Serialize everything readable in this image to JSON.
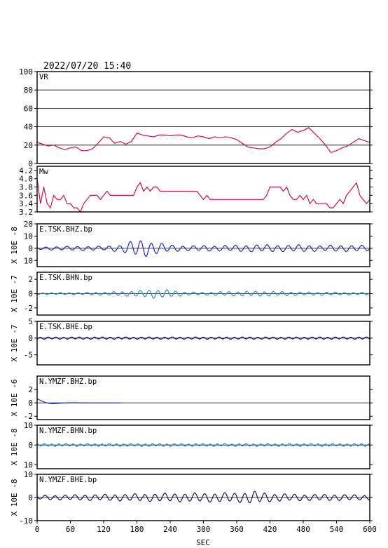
{
  "header": {
    "datetime": "2022/07/20  15:40"
  },
  "x_axis": {
    "label": "SEC",
    "ticks": [
      0,
      60,
      120,
      180,
      240,
      300,
      360,
      420,
      480,
      540,
      600
    ],
    "range": [
      0,
      600
    ]
  },
  "chart_data": [
    {
      "type": "line",
      "name": "VR",
      "panel_label": "VR",
      "ylabel": "",
      "ylim": [
        0,
        100
      ],
      "yticks": [
        0,
        20,
        40,
        60,
        80,
        100
      ],
      "grid_y": [
        20,
        40,
        60,
        80
      ],
      "color": "#cc1144",
      "x": [
        0,
        10,
        20,
        30,
        40,
        50,
        60,
        70,
        80,
        90,
        100,
        110,
        120,
        130,
        140,
        150,
        160,
        170,
        180,
        190,
        200,
        210,
        220,
        230,
        240,
        250,
        260,
        270,
        280,
        290,
        300,
        310,
        320,
        330,
        340,
        350,
        360,
        370,
        380,
        390,
        400,
        410,
        420,
        430,
        440,
        450,
        460,
        470,
        480,
        490,
        500,
        510,
        520,
        530,
        540,
        550,
        560,
        570,
        580,
        590,
        600
      ],
      "values": [
        23,
        21,
        19,
        20,
        17,
        15,
        17,
        18,
        14,
        14,
        16,
        22,
        29,
        28,
        22,
        24,
        21,
        24,
        33,
        31,
        30,
        29,
        31,
        31,
        30,
        31,
        31,
        29,
        28,
        30,
        29,
        27,
        29,
        28,
        29,
        28,
        26,
        22,
        18,
        17,
        16,
        16,
        18,
        23,
        27,
        33,
        37,
        34,
        36,
        39,
        33,
        27,
        20,
        12,
        14,
        17,
        19,
        23,
        27,
        25,
        23
      ]
    },
    {
      "type": "line",
      "name": "Mw",
      "panel_label": "Mw",
      "ylabel": "",
      "ylim": [
        3.2,
        4.3
      ],
      "yticks": [
        3.2,
        3.4,
        3.6,
        3.8,
        4.0,
        4.2
      ],
      "color": "#cc1144",
      "x": [
        0,
        6,
        12,
        18,
        24,
        30,
        36,
        42,
        48,
        54,
        60,
        66,
        72,
        78,
        84,
        90,
        96,
        102,
        108,
        114,
        120,
        126,
        132,
        138,
        144,
        150,
        156,
        162,
        168,
        174,
        180,
        186,
        192,
        198,
        204,
        210,
        216,
        222,
        228,
        234,
        240,
        246,
        252,
        258,
        264,
        270,
        276,
        282,
        288,
        294,
        300,
        306,
        312,
        318,
        324,
        330,
        336,
        342,
        348,
        354,
        360,
        366,
        372,
        378,
        384,
        390,
        396,
        402,
        408,
        414,
        420,
        426,
        432,
        438,
        444,
        450,
        456,
        462,
        468,
        474,
        480,
        486,
        492,
        498,
        504,
        510,
        516,
        522,
        528,
        534,
        540,
        546,
        552,
        558,
        564,
        570,
        576,
        582,
        588,
        594,
        600
      ],
      "values": [
        4.0,
        3.4,
        3.8,
        3.4,
        3.3,
        3.6,
        3.5,
        3.5,
        3.6,
        3.4,
        3.4,
        3.3,
        3.3,
        3.2,
        3.4,
        3.5,
        3.6,
        3.6,
        3.6,
        3.5,
        3.6,
        3.7,
        3.6,
        3.6,
        3.6,
        3.6,
        3.6,
        3.6,
        3.6,
        3.6,
        3.8,
        3.9,
        3.7,
        3.8,
        3.7,
        3.8,
        3.8,
        3.7,
        3.7,
        3.7,
        3.7,
        3.7,
        3.7,
        3.7,
        3.7,
        3.7,
        3.7,
        3.7,
        3.7,
        3.6,
        3.5,
        3.6,
        3.5,
        3.5,
        3.5,
        3.5,
        3.5,
        3.5,
        3.5,
        3.5,
        3.5,
        3.5,
        3.5,
        3.5,
        3.5,
        3.5,
        3.5,
        3.5,
        3.5,
        3.6,
        3.8,
        3.8,
        3.8,
        3.8,
        3.7,
        3.8,
        3.6,
        3.5,
        3.5,
        3.6,
        3.5,
        3.6,
        3.4,
        3.5,
        3.4,
        3.4,
        3.4,
        3.4,
        3.3,
        3.3,
        3.4,
        3.5,
        3.4,
        3.6,
        3.7,
        3.8,
        3.9,
        3.6,
        3.5,
        3.4,
        3.5
      ]
    },
    {
      "type": "line",
      "name": "E.TSK.BHZ.bp",
      "panel_label": "E.TSK.BHZ.bp",
      "ylabel": "X 10E -8",
      "ylim": [
        -15,
        20
      ],
      "yticks": [
        -10,
        0,
        10,
        20
      ],
      "tick_labels": [
        "10",
        "0",
        "10",
        "20"
      ],
      "color": "#1c2ab8",
      "period": 19,
      "x": [
        0,
        60,
        120,
        150,
        165,
        180,
        195,
        210,
        240,
        270,
        300,
        330,
        360,
        390,
        420,
        450,
        480,
        510,
        540,
        570,
        600
      ],
      "values": [
        1,
        1.5,
        1.5,
        2.5,
        4.5,
        6,
        6,
        4.5,
        2.5,
        1.8,
        2,
        2,
        2.2,
        2.6,
        2.6,
        2.3,
        2.6,
        2,
        2.3,
        2.2,
        2
      ]
    },
    {
      "type": "line",
      "name": "E.TSK.BHN.bp",
      "panel_label": "E.TSK.BHN.bp",
      "ylabel": "X 10E -7",
      "ylim": [
        -3,
        3
      ],
      "yticks": [
        -2,
        0,
        2
      ],
      "tick_labels": [
        "-2",
        "0",
        "2"
      ],
      "color": "#2b8fd0",
      "period": 16,
      "x": [
        0,
        60,
        120,
        180,
        210,
        240,
        270,
        300,
        330,
        360,
        390,
        420,
        450,
        480,
        510,
        540,
        570,
        600
      ],
      "values": [
        0.12,
        0.12,
        0.2,
        0.35,
        0.55,
        0.45,
        0.2,
        0.18,
        0.25,
        0.28,
        0.32,
        0.3,
        0.25,
        0.2,
        0.22,
        0.18,
        0.15,
        0.15
      ]
    },
    {
      "type": "line",
      "name": "E.TSK.BHE.bp",
      "panel_label": "E.TSK.BHE.bp",
      "ylabel": "X 10E -7",
      "ylim": [
        -8,
        5
      ],
      "yticks": [
        -5,
        0,
        5
      ],
      "tick_labels": [
        "-5",
        "0",
        "5"
      ],
      "color": "#101060",
      "period": 14,
      "x": [
        0,
        600
      ],
      "values": [
        0.3,
        0.3
      ]
    },
    {
      "type": "line",
      "name": "N.YMZF.BHZ.bp",
      "panel_label": "N.YMZF.BHZ.bp",
      "ylabel": "X 10E -6",
      "ylim": [
        -2.5,
        4
      ],
      "yticks": [
        -2,
        0,
        2
      ],
      "tick_labels": [
        "-2",
        "0",
        "2"
      ],
      "color": "#1c2ab8",
      "kind": "decay",
      "end_x": 150,
      "x": [
        0,
        150
      ],
      "values": [
        0.6,
        0.0
      ]
    },
    {
      "type": "line",
      "name": "N.YMZF.BHN.bp",
      "panel_label": "N.YMZF.BHN.bp",
      "ylabel": "X 10E -8",
      "ylim": [
        -12,
        10
      ],
      "yticks": [
        -10,
        0,
        10
      ],
      "tick_labels": [
        "10",
        "0",
        "10"
      ],
      "color": "#2b8fd0",
      "period": 13,
      "x": [
        0,
        600
      ],
      "values": [
        0.6,
        0.6
      ]
    },
    {
      "type": "line",
      "name": "N.YMZF.BHE.bp",
      "panel_label": "N.YMZF.BHE.bp",
      "ylabel": "X 10E -8",
      "ylim": [
        -10,
        10
      ],
      "yticks": [
        -10,
        0,
        10
      ],
      "tick_labels": [
        "-10",
        "0",
        "10"
      ],
      "color": "#101060",
      "period": 18,
      "x": [
        0,
        120,
        240,
        360,
        390,
        420,
        480,
        540,
        600
      ],
      "values": [
        0.8,
        1.2,
        1.6,
        1.8,
        2.4,
        1.6,
        1.2,
        1.2,
        0.9
      ]
    }
  ]
}
